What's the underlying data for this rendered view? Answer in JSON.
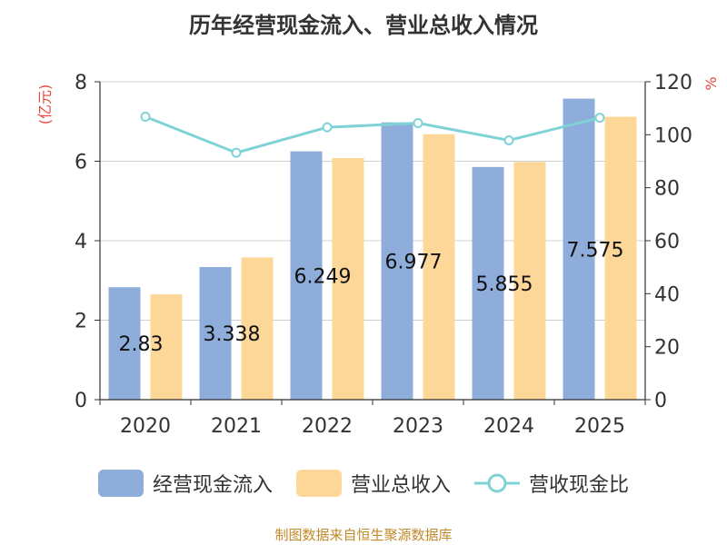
{
  "chart_data": {
    "type": "bar",
    "title": "历年经营现金流入、营业总收入情况",
    "categories": [
      "2020",
      "2021",
      "2022",
      "2023",
      "2024",
      "2025"
    ],
    "series": [
      {
        "name": "经营现金流入",
        "axis": "left",
        "color": "#8EADDB",
        "values": [
          2.83,
          3.338,
          6.249,
          6.977,
          5.855,
          7.575
        ],
        "labels": [
          "2.83",
          "3.338",
          "6.249",
          "6.977",
          "5.855",
          "7.575"
        ]
      },
      {
        "name": "营业总收入",
        "axis": "left",
        "color": "#FDD797",
        "values": [
          2.65,
          3.58,
          6.08,
          6.68,
          5.98,
          7.12
        ]
      },
      {
        "name": "营收现金比",
        "axis": "right",
        "type": "line",
        "color": "#7FD3D6",
        "values": [
          106.8,
          93.2,
          102.8,
          104.4,
          97.9,
          106.4
        ]
      }
    ],
    "ylabel_left": "(亿元)",
    "ylabel_right": "%",
    "ylim_left": [
      0,
      8
    ],
    "ylim_right": [
      0,
      120
    ],
    "yticks_left": [
      "0",
      "2",
      "4",
      "6",
      "8"
    ],
    "yticks_right": [
      "0",
      "20",
      "40",
      "60",
      "80",
      "100",
      "120"
    ],
    "grid": true,
    "legend_position": "bottom",
    "colors": {
      "axis_label": "#E8473C",
      "grid": "#cfcfcf",
      "text": "#333333"
    }
  },
  "source_note": "制图数据来自恒生聚源数据库"
}
